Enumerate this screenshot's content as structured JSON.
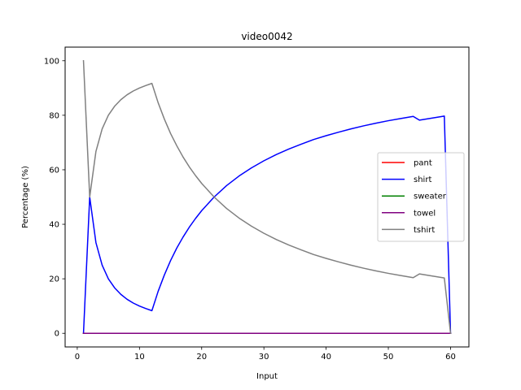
{
  "chart_data": {
    "type": "line",
    "title": "video0042",
    "xlabel": "Input",
    "ylabel": "Percentage (%)",
    "xlim": [
      -1.95,
      62.95
    ],
    "ylim": [
      -5,
      105
    ],
    "xticks": [
      0,
      10,
      20,
      30,
      40,
      50,
      60
    ],
    "yticks": [
      0,
      20,
      40,
      60,
      80,
      100
    ],
    "grid": false,
    "legend_position": "center-right",
    "series": [
      {
        "name": "pant",
        "color": "#ff0000",
        "x": [
          1,
          60
        ],
        "y": [
          0,
          0
        ]
      },
      {
        "name": "shirt",
        "color": "#0000ff",
        "x": [
          1,
          2,
          3,
          4,
          5,
          6,
          7,
          8,
          9,
          10,
          11,
          12,
          13,
          14,
          15,
          16,
          17,
          18,
          19,
          20,
          22,
          24,
          26,
          28,
          30,
          32,
          34,
          36,
          38,
          40,
          42,
          44,
          46,
          48,
          50,
          52,
          54,
          55,
          59,
          60
        ],
        "y": [
          0,
          50,
          33.3,
          25,
          20,
          16.7,
          14.3,
          12.5,
          11.1,
          10,
          9.1,
          8.3,
          15.4,
          21.4,
          26.7,
          31.3,
          35.3,
          38.9,
          42.1,
          45,
          50,
          54.2,
          57.7,
          60.7,
          63.3,
          65.6,
          67.6,
          69.4,
          71.1,
          72.5,
          73.8,
          75,
          76.1,
          77.1,
          78,
          78.8,
          79.6,
          78.2,
          79.7,
          0
        ]
      },
      {
        "name": "sweater",
        "color": "#008000",
        "x": [
          1,
          60
        ],
        "y": [
          0,
          0
        ]
      },
      {
        "name": "towel",
        "color": "#800080",
        "x": [
          1,
          60
        ],
        "y": [
          0,
          0
        ]
      },
      {
        "name": "tshirt",
        "color": "#808080",
        "x": [
          1,
          2,
          3,
          4,
          5,
          6,
          7,
          8,
          9,
          10,
          11,
          12,
          13,
          14,
          15,
          16,
          17,
          18,
          19,
          20,
          22,
          24,
          26,
          28,
          30,
          32,
          34,
          36,
          38,
          40,
          42,
          44,
          46,
          48,
          50,
          52,
          54,
          55,
          59,
          60
        ],
        "y": [
          100,
          50,
          66.7,
          75,
          80,
          83.3,
          85.7,
          87.5,
          88.9,
          90,
          90.9,
          91.7,
          84.6,
          78.6,
          73.3,
          68.8,
          64.7,
          61.1,
          57.9,
          55,
          50,
          45.8,
          42.3,
          39.3,
          36.7,
          34.4,
          32.4,
          30.6,
          28.9,
          27.5,
          26.2,
          25,
          23.9,
          22.9,
          22,
          21.2,
          20.4,
          21.8,
          20.3,
          0
        ]
      }
    ]
  }
}
